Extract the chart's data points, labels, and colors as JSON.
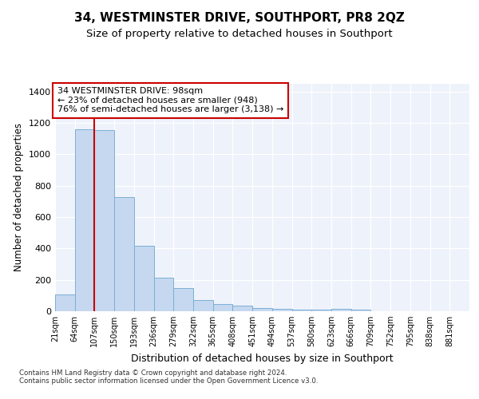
{
  "title": "34, WESTMINSTER DRIVE, SOUTHPORT, PR8 2QZ",
  "subtitle": "Size of property relative to detached houses in Southport",
  "xlabel": "Distribution of detached houses by size in Southport",
  "ylabel": "Number of detached properties",
  "bar_color": "#c5d8f0",
  "bar_edge_color": "#7bafd4",
  "vline_color": "#cc0000",
  "vline_x": 107,
  "categories": [
    "21sqm",
    "64sqm",
    "107sqm",
    "150sqm",
    "193sqm",
    "236sqm",
    "279sqm",
    "322sqm",
    "365sqm",
    "408sqm",
    "451sqm",
    "494sqm",
    "537sqm",
    "580sqm",
    "623sqm",
    "666sqm",
    "709sqm",
    "752sqm",
    "795sqm",
    "838sqm",
    "881sqm"
  ],
  "bin_edges": [
    21,
    64,
    107,
    150,
    193,
    236,
    279,
    322,
    365,
    408,
    451,
    494,
    537,
    580,
    623,
    666,
    709,
    752,
    795,
    838,
    881,
    924
  ],
  "values": [
    105,
    1160,
    1155,
    730,
    415,
    215,
    148,
    70,
    48,
    35,
    20,
    15,
    12,
    10,
    15,
    8,
    0,
    0,
    0,
    0,
    0
  ],
  "annotation_text": "34 WESTMINSTER DRIVE: 98sqm\n← 23% of detached houses are smaller (948)\n76% of semi-detached houses are larger (3,138) →",
  "annotation_box_color": "#ffffff",
  "annotation_border_color": "#cc0000",
  "ylim": [
    0,
    1450
  ],
  "yticks": [
    0,
    200,
    400,
    600,
    800,
    1000,
    1200,
    1400
  ],
  "background_color": "#eef2fb",
  "grid_color": "#ffffff",
  "footer_text": "Contains HM Land Registry data © Crown copyright and database right 2024.\nContains public sector information licensed under the Open Government Licence v3.0.",
  "title_fontsize": 11,
  "subtitle_fontsize": 9.5,
  "ylabel_fontsize": 8.5,
  "xlabel_fontsize": 9,
  "tick_fontsize": 7,
  "annotation_fontsize": 8
}
